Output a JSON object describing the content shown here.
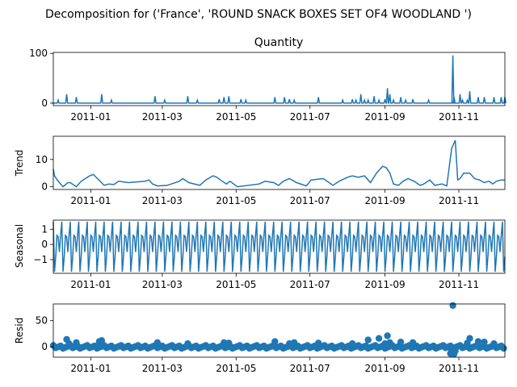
{
  "suptitle": "Decomposition for ('France', 'ROUND SNACK BOXES SET OF4 WOODLAND ')",
  "colors": {
    "series": "#1f77b4",
    "axis": "#000000",
    "background": "#ffffff"
  },
  "x_ticks": [
    "2011-01",
    "2011-03",
    "2011-05",
    "2011-07",
    "2011-09",
    "2011-11"
  ],
  "chart_data": [
    {
      "type": "line",
      "title": "Quantity",
      "ylabel": "",
      "x_range": [
        "2010-12-01",
        "2011-12-09"
      ],
      "ylim": [
        -5,
        102
      ],
      "yticks": [
        "0",
        "100"
      ],
      "grid": false,
      "series": [
        {
          "x": [
            "2010-12-01",
            "2010-12-05",
            "2010-12-08",
            "2010-12-12",
            "2010-12-15",
            "2010-12-20",
            "2011-01-08",
            "2011-01-10",
            "2011-01-18",
            "2011-02-23",
            "2011-02-25",
            "2011-03-03",
            "2011-03-20",
            "2011-03-22",
            "2011-03-30",
            "2011-04-17",
            "2011-04-21",
            "2011-04-25",
            "2011-05-03",
            "2011-05-05",
            "2011-05-09",
            "2011-06-02",
            "2011-06-10",
            "2011-06-14",
            "2011-06-18",
            "2011-07-08",
            "2011-07-28",
            "2011-08-05",
            "2011-08-08",
            "2011-08-12",
            "2011-08-15",
            "2011-08-18",
            "2011-08-23",
            "2011-08-27",
            "2011-09-01",
            "2011-09-03",
            "2011-09-05",
            "2011-09-08",
            "2011-09-14",
            "2011-09-18",
            "2011-09-24",
            "2011-10-07",
            "2011-10-25",
            "2011-10-27",
            "2011-10-28",
            "2011-10-29",
            "2011-11-02",
            "2011-11-04",
            "2011-11-08",
            "2011-11-10",
            "2011-11-17",
            "2011-11-22",
            "2011-11-30",
            "2011-12-06",
            "2011-12-09"
          ],
          "values": [
            0,
            6,
            0,
            18,
            0,
            12,
            0,
            18,
            6,
            14,
            0,
            6,
            0,
            14,
            6,
            8,
            12,
            14,
            0,
            8,
            6,
            12,
            12,
            8,
            6,
            12,
            6,
            8,
            6,
            18,
            6,
            6,
            14,
            6,
            8,
            30,
            18,
            6,
            12,
            6,
            8,
            6,
            0,
            96,
            12,
            0,
            18,
            6,
            6,
            24,
            12,
            12,
            12,
            12,
            12
          ]
        }
      ]
    },
    {
      "type": "line",
      "title": "",
      "ylabel": "Trend",
      "x_range": [
        "2010-12-01",
        "2011-12-09"
      ],
      "ylim": [
        -1,
        18.5
      ],
      "yticks": [
        "0",
        "10"
      ],
      "grid": false,
      "series": [
        {
          "x": [
            "2010-12-01",
            "2010-12-02",
            "2010-12-05",
            "2010-12-08",
            "2010-12-09",
            "2010-12-13",
            "2010-12-15",
            "2010-12-20",
            "2010-12-24",
            "2010-12-31",
            "2011-01-03",
            "2011-01-12",
            "2011-01-16",
            "2011-01-20",
            "2011-01-24",
            "2011-02-01",
            "2011-02-15",
            "2011-02-18",
            "2011-02-21",
            "2011-02-25",
            "2011-03-05",
            "2011-03-15",
            "2011-03-18",
            "2011-03-23",
            "2011-04-01",
            "2011-04-06",
            "2011-04-12",
            "2011-04-15",
            "2011-04-18",
            "2011-04-23",
            "2011-04-26",
            "2011-05-02",
            "2011-05-20",
            "2011-05-25",
            "2011-06-01",
            "2011-06-05",
            "2011-06-09",
            "2011-06-14",
            "2011-06-20",
            "2011-06-28",
            "2011-07-02",
            "2011-07-12",
            "2011-07-20",
            "2011-07-25",
            "2011-08-01",
            "2011-08-05",
            "2011-08-10",
            "2011-08-15",
            "2011-08-20",
            "2011-08-25",
            "2011-08-30",
            "2011-09-02",
            "2011-09-05",
            "2011-09-08",
            "2011-09-12",
            "2011-09-16",
            "2011-09-20",
            "2011-09-25",
            "2011-09-30",
            "2011-10-03",
            "2011-10-08",
            "2011-10-12",
            "2011-10-18",
            "2011-10-22",
            "2011-10-26",
            "2011-10-27",
            "2011-10-29",
            "2011-10-31",
            "2011-11-02",
            "2011-11-05",
            "2011-11-10",
            "2011-11-14",
            "2011-11-18",
            "2011-11-22",
            "2011-11-26",
            "2011-11-29",
            "2011-12-02",
            "2011-12-06",
            "2011-12-09"
          ],
          "values": [
            6.5,
            4,
            2,
            0.5,
            0,
            1.5,
            1.5,
            0,
            2,
            4,
            4.5,
            0.5,
            1,
            0.8,
            2,
            1.5,
            2,
            2.5,
            1,
            0.3,
            0.5,
            2,
            3,
            1.5,
            0.5,
            2.5,
            4,
            3.5,
            2.5,
            1,
            2,
            0,
            1,
            2,
            1.5,
            0.5,
            2,
            3,
            1.5,
            0.3,
            2.5,
            3,
            0.5,
            2,
            3.5,
            4,
            3.5,
            4,
            1.5,
            5,
            7.5,
            7,
            5,
            1,
            0.5,
            2,
            3,
            2,
            0.5,
            1,
            2.5,
            0.5,
            1,
            0.3,
            14,
            15,
            17,
            2.5,
            3,
            5,
            5,
            3,
            2.5,
            1.5,
            2,
            1,
            2,
            2.5,
            2.5
          ]
        }
      ]
    },
    {
      "type": "line",
      "title": "",
      "ylabel": "Seasonal",
      "x_range": [
        "2010-12-01",
        "2011-12-09"
      ],
      "ylim": [
        -1.9,
        1.6
      ],
      "yticks": [
        "1",
        "0",
        "−1"
      ],
      "grid": false,
      "period_days": 7,
      "pattern": [
        1.5,
        -1.8,
        -0.8,
        0.6,
        0.5,
        -0.5,
        0.6
      ]
    },
    {
      "type": "scatter",
      "title": "",
      "ylabel": "Resid",
      "x_range": [
        "2010-12-01",
        "2011-12-09"
      ],
      "ylim": [
        -20,
        82
      ],
      "yticks": [
        "50",
        "0"
      ],
      "grid": false,
      "series": [
        {
          "x": [
            "2010-12-12",
            "2010-12-14",
            "2010-12-20",
            "2011-01-08",
            "2011-01-10",
            "2011-02-25",
            "2011-03-22",
            "2011-04-21",
            "2011-04-25",
            "2011-06-02",
            "2011-06-14",
            "2011-06-18",
            "2011-07-08",
            "2011-08-05",
            "2011-08-18",
            "2011-08-27",
            "2011-09-01",
            "2011-09-03",
            "2011-09-05",
            "2011-09-14",
            "2011-09-24",
            "2011-10-25",
            "2011-10-26",
            "2011-10-27",
            "2011-10-28",
            "2011-10-29",
            "2011-11-08",
            "2011-11-10",
            "2011-11-17",
            "2011-11-22",
            "2011-11-30"
          ],
          "values": [
            14,
            6,
            8,
            10,
            12,
            8,
            6,
            8,
            7,
            10,
            6,
            8,
            7,
            6,
            13,
            16,
            6,
            21,
            8,
            9,
            8,
            -13,
            -8,
            79,
            -14,
            -8,
            7,
            16,
            10,
            9,
            6
          ]
        }
      ]
    }
  ]
}
